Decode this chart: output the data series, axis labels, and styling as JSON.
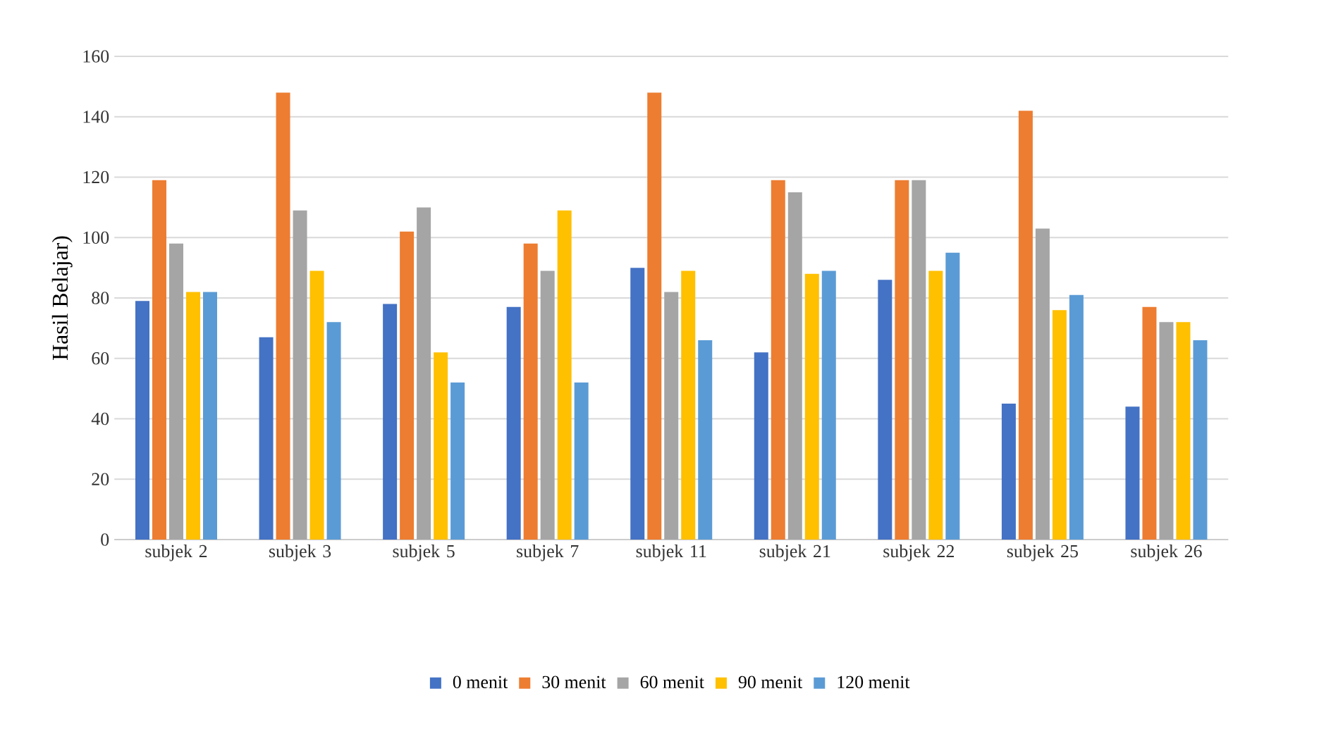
{
  "chart_data": {
    "type": "bar",
    "ylabel": "Hasil Belajar)",
    "categories": [
      "subjek 2",
      "subjek 3",
      "subjek 5",
      "subjek 7",
      "subjek 11",
      "subjek 21",
      "subjek 22",
      "subjek 25",
      "subjek 26"
    ],
    "series": [
      {
        "name": "0 menit",
        "color": "#4472c4",
        "values": [
          79,
          67,
          78,
          77,
          90,
          62,
          86,
          45,
          44
        ]
      },
      {
        "name": "30 menit",
        "color": "#ed7d31",
        "values": [
          119,
          148,
          102,
          98,
          148,
          119,
          119,
          142,
          77
        ]
      },
      {
        "name": "60 menit",
        "color": "#a5a5a5",
        "values": [
          98,
          109,
          110,
          89,
          82,
          115,
          119,
          103,
          72
        ]
      },
      {
        "name": "90 menit",
        "color": "#ffc000",
        "values": [
          82,
          89,
          62,
          109,
          89,
          88,
          89,
          76,
          72
        ]
      },
      {
        "name": "120 menit",
        "color": "#5b9bd5",
        "values": [
          82,
          72,
          52,
          52,
          66,
          89,
          95,
          81,
          66
        ]
      }
    ],
    "ylim": [
      0,
      160
    ],
    "yticks": [
      0,
      20,
      40,
      60,
      80,
      100,
      120,
      140,
      160
    ],
    "grid": "y",
    "legend": "bottom"
  }
}
